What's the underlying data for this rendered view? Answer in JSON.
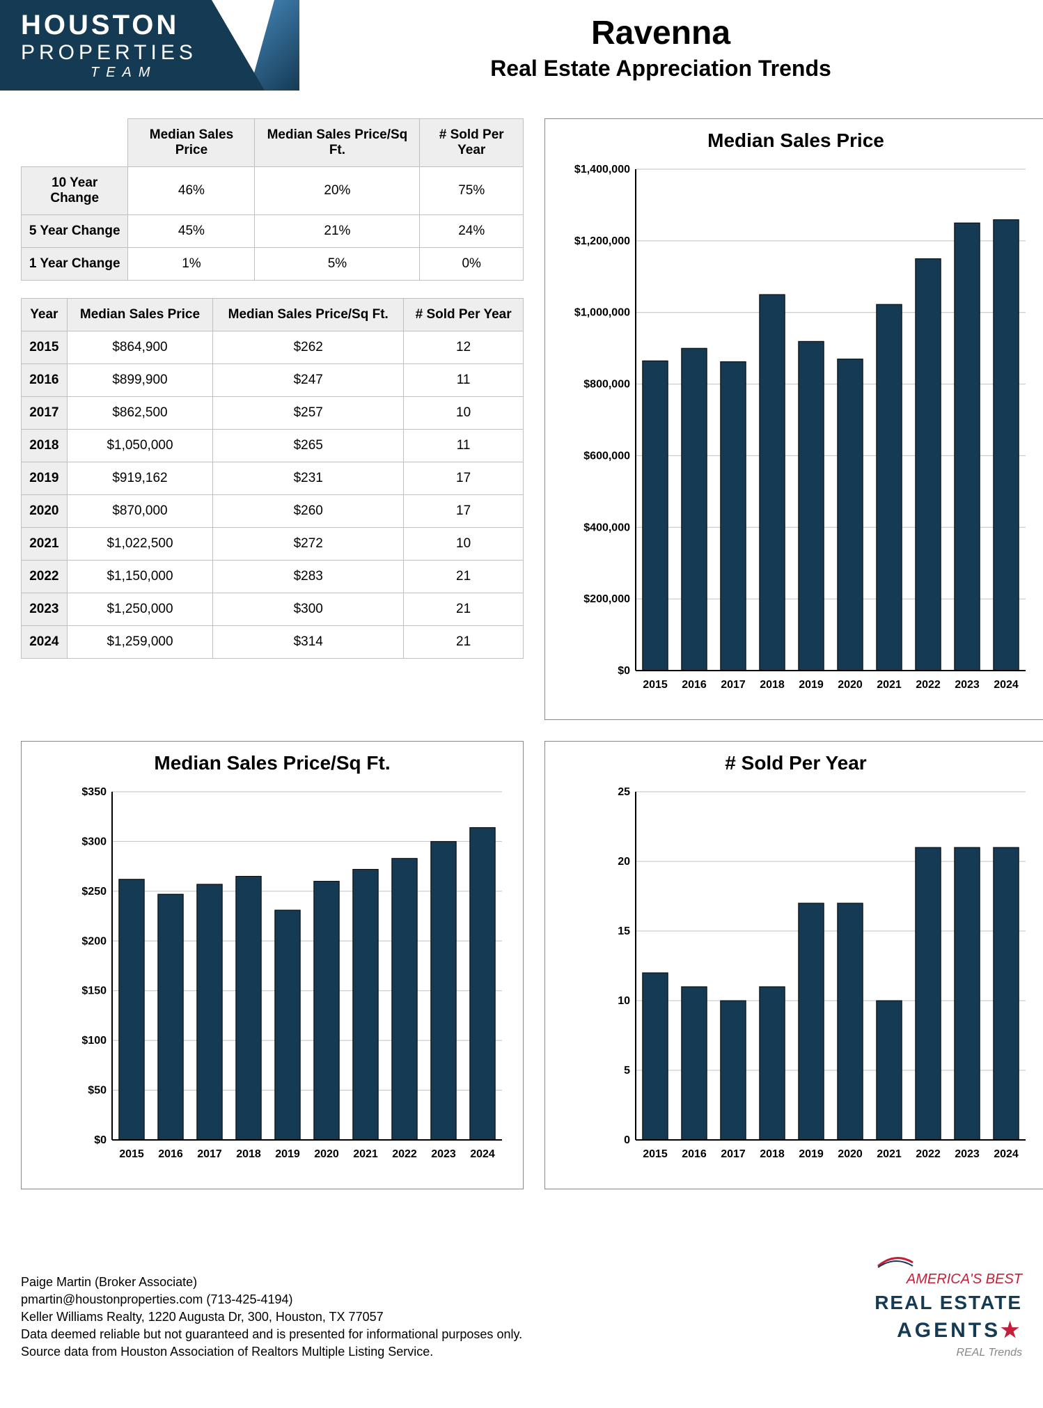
{
  "header": {
    "logo_line1": "HOUSTON",
    "logo_line2": "PROPERTIES",
    "logo_line3": "TEAM",
    "title_main": "Ravenna",
    "title_sub": "Real Estate Appreciation Trends"
  },
  "colors": {
    "bar_fill": "#153a54",
    "bar_stroke": "#000000",
    "gridline": "#c0c0c0",
    "axis": "#000000",
    "header_bg": "#eeeeee",
    "border": "#c0c0c0"
  },
  "summary_table": {
    "columns": [
      "",
      "Median Sales Price",
      "Median Sales Price/Sq Ft.",
      "# Sold Per Year"
    ],
    "rows": [
      [
        "10 Year Change",
        "46%",
        "20%",
        "75%"
      ],
      [
        "5 Year Change",
        "45%",
        "21%",
        "24%"
      ],
      [
        "1 Year Change",
        "1%",
        "5%",
        "0%"
      ]
    ]
  },
  "yearly_table": {
    "columns": [
      "Year",
      "Median Sales Price",
      "Median Sales Price/Sq Ft.",
      "# Sold Per Year"
    ],
    "rows": [
      [
        "2015",
        "$864,900",
        "$262",
        "12"
      ],
      [
        "2016",
        "$899,900",
        "$247",
        "11"
      ],
      [
        "2017",
        "$862,500",
        "$257",
        "10"
      ],
      [
        "2018",
        "$1,050,000",
        "$265",
        "11"
      ],
      [
        "2019",
        "$919,162",
        "$231",
        "17"
      ],
      [
        "2020",
        "$870,000",
        "$260",
        "17"
      ],
      [
        "2021",
        "$1,022,500",
        "$272",
        "10"
      ],
      [
        "2022",
        "$1,150,000",
        "$283",
        "21"
      ],
      [
        "2023",
        "$1,250,000",
        "$300",
        "21"
      ],
      [
        "2024",
        "$1,259,000",
        "$314",
        "21"
      ]
    ]
  },
  "years": [
    "2015",
    "2016",
    "2017",
    "2018",
    "2019",
    "2020",
    "2021",
    "2022",
    "2023",
    "2024"
  ],
  "chart_price": {
    "title": "Median Sales Price",
    "values": [
      864900,
      899900,
      862500,
      1050000,
      919162,
      870000,
      1022500,
      1150000,
      1250000,
      1259000
    ],
    "ymax": 1400000,
    "ystep": 200000,
    "tick_labels": [
      "$0",
      "$200,000",
      "$400,000",
      "$600,000",
      "$800,000",
      "$1,000,000",
      "$1,200,000",
      "$1,400,000"
    ],
    "bar_width": 0.65
  },
  "chart_sqft": {
    "title": "Median Sales Price/Sq Ft.",
    "values": [
      262,
      247,
      257,
      265,
      231,
      260,
      272,
      283,
      300,
      314
    ],
    "ymax": 350,
    "ystep": 50,
    "tick_labels": [
      "$0",
      "$50",
      "$100",
      "$150",
      "$200",
      "$250",
      "$300",
      "$350"
    ],
    "bar_width": 0.65
  },
  "chart_sold": {
    "title": "# Sold Per Year",
    "values": [
      12,
      11,
      10,
      11,
      17,
      17,
      10,
      21,
      21,
      21
    ],
    "ymax": 25,
    "ystep": 5,
    "tick_labels": [
      "0",
      "5",
      "10",
      "15",
      "20",
      "25"
    ],
    "bar_width": 0.65
  },
  "footer": {
    "lines": [
      "Paige Martin (Broker Associate)",
      "pmartin@houstonproperties.com (713-425-4194)",
      "Keller Williams Realty, 1220 Augusta Dr, 300, Houston, TX 77057",
      "Data deemed reliable but not guaranteed and is presented for informational purposes only.",
      "Source data from Houston Association of Realtors Multiple Listing Service."
    ],
    "badge": {
      "line1": "AMERICA'S BEST",
      "line2": "REAL ESTATE",
      "line3": "AGENTS",
      "line4": "REAL Trends"
    }
  }
}
